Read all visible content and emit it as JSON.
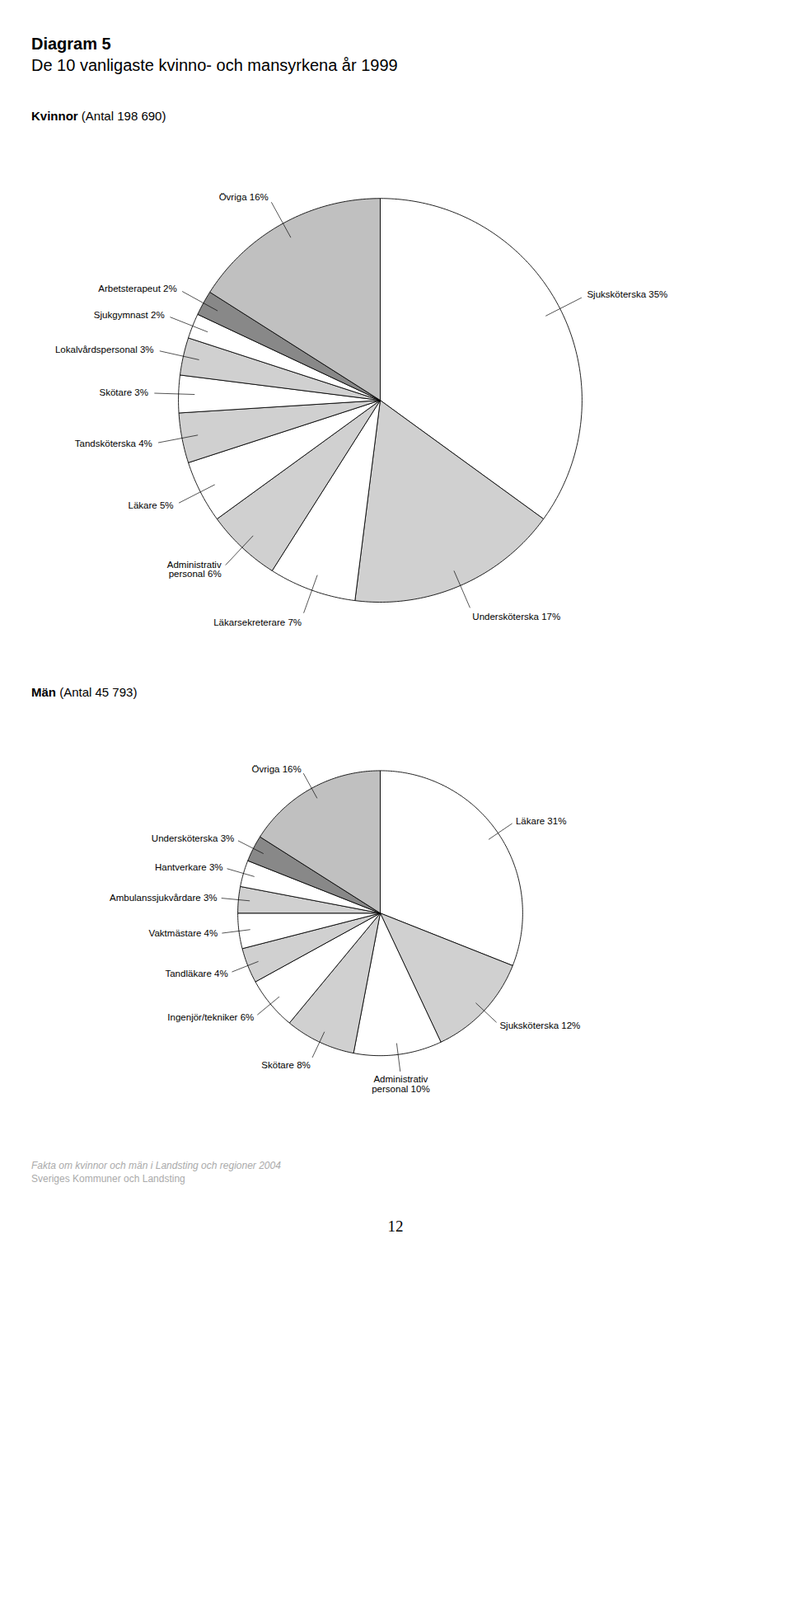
{
  "title": "Diagram 5",
  "subtitle": "De 10 vanligaste kvinno- och mansyrkena år 1999",
  "chart_data": [
    {
      "type": "pie",
      "title": "Kvinnor (Antal 198 690)",
      "categories": [
        "Sjuksköterska 35%",
        "Undersköterska 17%",
        "Läkarsekreterare 7%",
        "Administrativ\npersonal 6%",
        "Läkare 5%",
        "Tandsköterska 4%",
        "Skötare 3%",
        "Lokalvårdspersonal 3%",
        "Sjukgymnast 2%",
        "Arbetsterapeut 2%",
        "Övriga 16%"
      ],
      "values": [
        35,
        17,
        7,
        6,
        5,
        4,
        3,
        3,
        2,
        2,
        16
      ],
      "colors": [
        "#ffffff",
        "#d0d0d0",
        "#ffffff",
        "#d0d0d0",
        "#ffffff",
        "#d0d0d0",
        "#ffffff",
        "#d0d0d0",
        "#ffffff",
        "#888888",
        "#c0c0c0"
      ]
    },
    {
      "type": "pie",
      "title": "Män (Antal 45 793)",
      "categories": [
        "Läkare 31%",
        "Sjuksköterska 12%",
        "Administrativ\npersonal 10%",
        "Skötare 8%",
        "Ingenjör/tekniker 6%",
        "Tandläkare 4%",
        "Vaktmästare 4%",
        "Ambulanssjukvårdare 3%",
        "Hantverkare 3%",
        "Undersköterska 3%",
        "Övriga 16%"
      ],
      "values": [
        31,
        12,
        10,
        8,
        6,
        4,
        4,
        3,
        3,
        3,
        16
      ],
      "colors": [
        "#ffffff",
        "#d0d0d0",
        "#ffffff",
        "#d0d0d0",
        "#ffffff",
        "#d0d0d0",
        "#ffffff",
        "#d0d0d0",
        "#ffffff",
        "#888888",
        "#c0c0c0"
      ]
    }
  ],
  "annotations": [
    "Fakta om kvinnor och män i Landsting och regioner 2004",
    "Sveriges Kommuner och Landsting",
    "12"
  ]
}
